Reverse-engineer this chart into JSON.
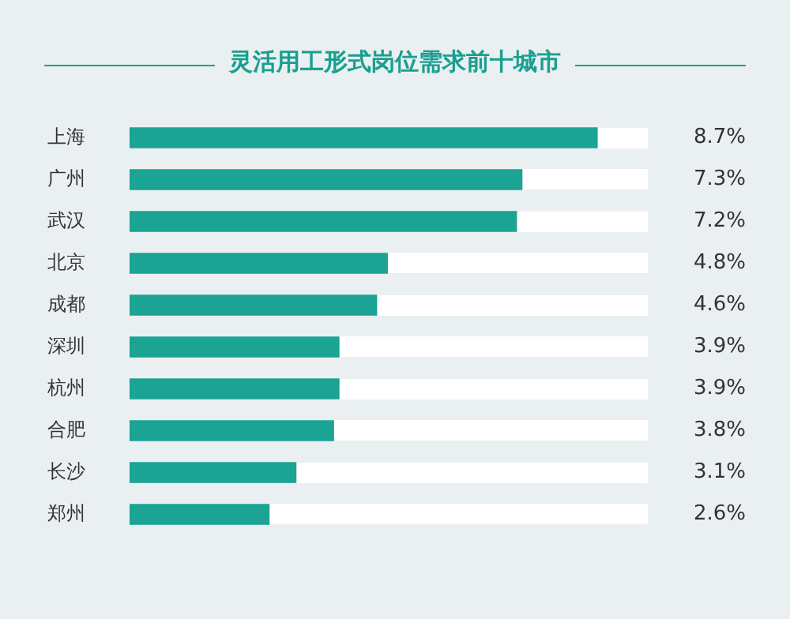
{
  "chart_data": {
    "type": "bar",
    "orientation": "horizontal",
    "title": "灵活用工形式岗位需求前十城市",
    "categories": [
      "上海",
      "广州",
      "武汉",
      "北京",
      "成都",
      "深圳",
      "杭州",
      "合肥",
      "长沙",
      "郑州"
    ],
    "values": [
      8.7,
      7.3,
      7.2,
      4.8,
      4.6,
      3.9,
      3.9,
      3.8,
      3.1,
      2.6
    ],
    "value_labels": [
      "8.7%",
      "7.3%",
      "7.2%",
      "4.8%",
      "4.6%",
      "3.9%",
      "3.9%",
      "3.8%",
      "3.1%",
      "2.6%"
    ],
    "color": "#1ba394",
    "legend": false,
    "tick_labels": "y"
  }
}
